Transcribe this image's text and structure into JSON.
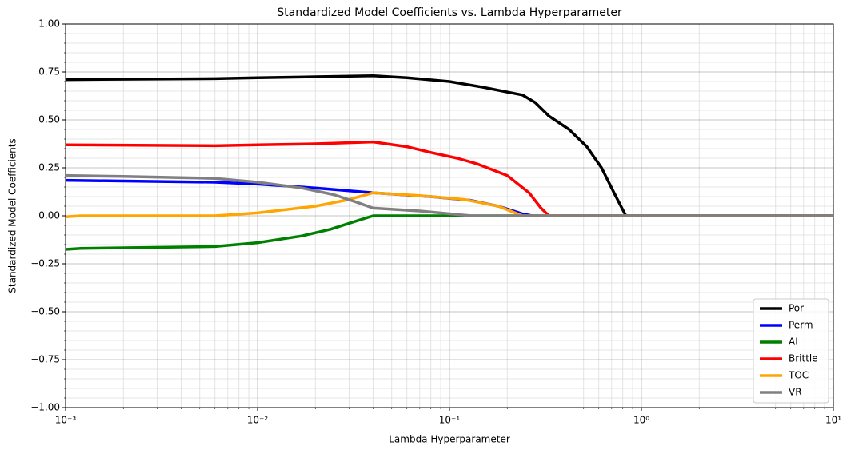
{
  "chart_data": {
    "type": "line",
    "title": "Standardized Model Coefficients vs. Lambda Hyperparameter",
    "x_label": "Lambda Hyperparameter",
    "y_label": "Standardized Model Coefficients",
    "x_scale": "log",
    "xlim": [
      0.001,
      10
    ],
    "xticks": [
      {
        "value": 0.001,
        "label": "10⁻³"
      },
      {
        "value": 0.01,
        "label": "10⁻²"
      },
      {
        "value": 0.1,
        "label": "10⁻¹"
      },
      {
        "value": 1,
        "label": "10⁰"
      },
      {
        "value": 10,
        "label": "10¹"
      }
    ],
    "ylim": [
      -1,
      1
    ],
    "yticks": [
      {
        "value": -1,
        "label": "−1.00"
      },
      {
        "value": -0.75,
        "label": "−0.75"
      },
      {
        "value": -0.5,
        "label": "−0.50"
      },
      {
        "value": -0.25,
        "label": "−0.25"
      },
      {
        "value": 0,
        "label": "0.00"
      },
      {
        "value": 0.25,
        "label": "0.25"
      },
      {
        "value": 0.5,
        "label": "0.50"
      },
      {
        "value": 0.75,
        "label": "0.75"
      },
      {
        "value": 1,
        "label": "1.00"
      }
    ],
    "grid": true,
    "minor_grid": true,
    "legend_position": "lower right",
    "series": [
      {
        "name": "Por",
        "color": "#000000",
        "x": [
          0.001,
          0.006,
          0.01,
          0.02,
          0.04,
          0.06,
          0.1,
          0.15,
          0.24,
          0.28,
          0.33,
          0.42,
          0.52,
          0.62,
          0.72,
          0.83,
          10
        ],
        "values": [
          0.71,
          0.715,
          0.72,
          0.725,
          0.73,
          0.72,
          0.7,
          0.67,
          0.63,
          0.59,
          0.52,
          0.45,
          0.36,
          0.25,
          0.12,
          0,
          0
        ]
      },
      {
        "name": "Perm",
        "color": "#0000ff",
        "x": [
          0.001,
          0.006,
          0.01,
          0.02,
          0.04,
          0.08,
          0.13,
          0.18,
          0.24,
          0.27,
          10
        ],
        "values": [
          0.185,
          0.175,
          0.165,
          0.145,
          0.12,
          0.1,
          0.08,
          0.05,
          0.01,
          0,
          0
        ]
      },
      {
        "name": "AI",
        "color": "#008000",
        "x": [
          0.001,
          0.0012,
          0.006,
          0.01,
          0.017,
          0.024,
          0.032,
          0.04,
          10
        ],
        "values": [
          -0.175,
          -0.17,
          -0.16,
          -0.14,
          -0.105,
          -0.07,
          -0.03,
          0,
          0
        ]
      },
      {
        "name": "Brittle",
        "color": "#ff0000",
        "x": [
          0.001,
          0.006,
          0.01,
          0.02,
          0.04,
          0.06,
          0.08,
          0.11,
          0.14,
          0.2,
          0.26,
          0.3,
          0.33,
          10
        ],
        "values": [
          0.37,
          0.365,
          0.37,
          0.375,
          0.385,
          0.36,
          0.33,
          0.3,
          0.27,
          0.21,
          0.12,
          0.04,
          0,
          0
        ]
      },
      {
        "name": "TOC",
        "color": "#ffa500",
        "x": [
          0.001,
          0.0012,
          0.006,
          0.01,
          0.02,
          0.03,
          0.04,
          0.07,
          0.12,
          0.18,
          0.24,
          10
        ],
        "values": [
          -0.005,
          0,
          0,
          0.015,
          0.05,
          0.085,
          0.12,
          0.105,
          0.085,
          0.05,
          0,
          0
        ]
      },
      {
        "name": "VR",
        "color": "#808080",
        "x": [
          0.001,
          0.002,
          0.006,
          0.01,
          0.017,
          0.025,
          0.033,
          0.04,
          0.07,
          0.13,
          10
        ],
        "values": [
          0.21,
          0.205,
          0.195,
          0.175,
          0.145,
          0.11,
          0.07,
          0.04,
          0.025,
          0,
          0
        ]
      }
    ]
  }
}
